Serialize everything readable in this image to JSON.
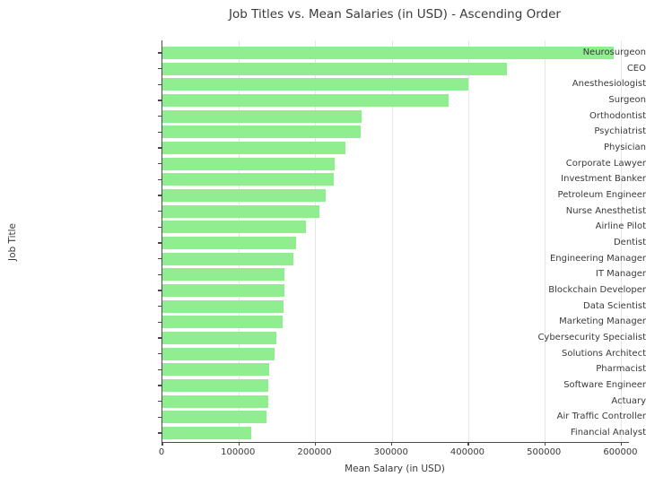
{
  "chart_data": {
    "type": "bar",
    "orientation": "horizontal",
    "title": "Job Titles vs. Mean Salaries (in USD) - Ascending Order",
    "xlabel": "Mean Salary (in USD)",
    "ylabel": "Job Title",
    "bar_color": "#90EE90",
    "gridline_color": "#e6e6e6",
    "axis_color": "#4a4a4a",
    "text_color": "#3a3a3a",
    "grid": "vertical only",
    "legend": "none",
    "sort_order": "values descending from top to bottom",
    "categories": [
      "Neurosurgeon",
      "CEO",
      "Anesthesiologist",
      "Surgeon",
      "Orthodontist",
      "Psychiatrist",
      "Physician",
      "Corporate Lawyer",
      "Investment Banker",
      "Petroleum Engineer",
      "Nurse Anesthetist",
      "Airline Pilot",
      "Dentist",
      "Engineering Manager",
      "IT Manager",
      "Blockchain Developer",
      "Data Scientist",
      "Marketing Manager",
      "Cybersecurity Specialist",
      "Solutions Architect",
      "Pharmacist",
      "Software Engineer",
      "Actuary",
      "Air Traffic Controller",
      "Financial Analyst"
    ],
    "values": [
      590000,
      450000,
      400000,
      374000,
      261000,
      259000,
      239000,
      225000,
      224000,
      214000,
      205000,
      188000,
      175000,
      171000,
      160000,
      159000,
      158000,
      157000,
      149000,
      147000,
      140000,
      139000,
      138000,
      136000,
      116000
    ],
    "xlim": [
      0,
      610000
    ],
    "xticks": [
      0,
      100000,
      200000,
      300000,
      400000,
      500000,
      600000
    ]
  }
}
